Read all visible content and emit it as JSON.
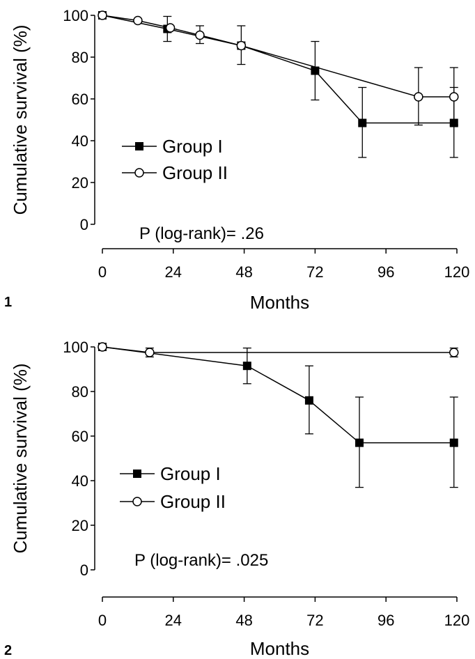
{
  "chart_data": [
    {
      "panel_label": "1",
      "type": "line",
      "xlabel": "Months",
      "ylabel": "Cumulative survival (%)",
      "xlim": [
        0,
        120
      ],
      "ylim": [
        0,
        100
      ],
      "xticks": [
        "0",
        "24",
        "48",
        "72",
        "96",
        "120"
      ],
      "yticks": [
        "0",
        "20",
        "40",
        "60",
        "80",
        "100"
      ],
      "annotation": "P (log-rank)= .26",
      "legend_position": "left-middle",
      "series": [
        {
          "name": "Group I",
          "marker": "filled-square",
          "points": [
            {
              "x": 0,
              "y": 100
            },
            {
              "x": 22,
              "y": 93.5,
              "err_low": 87.5,
              "err_high": 99.5
            },
            {
              "x": 47,
              "y": 85.5,
              "err_low": 76.5,
              "err_high": 95
            },
            {
              "x": 72,
              "y": 73.5,
              "err_low": 59.5,
              "err_high": 87.5
            },
            {
              "x": 88,
              "y": 48.5,
              "err_low": 32,
              "err_high": 65.5
            },
            {
              "x": 119,
              "y": 48.5,
              "err_low": 32,
              "err_high": 65.5
            }
          ]
        },
        {
          "name": "Group II",
          "marker": "open-circle",
          "points": [
            {
              "x": 0,
              "y": 100
            },
            {
              "x": 12,
              "y": 97.5
            },
            {
              "x": 23,
              "y": 94
            },
            {
              "x": 33,
              "y": 90.5,
              "err_low": 86.5,
              "err_high": 95
            },
            {
              "x": 47,
              "y": 85.5
            },
            {
              "x": 107,
              "y": 61,
              "err_low": 47.5,
              "err_high": 75
            },
            {
              "x": 119,
              "y": 61,
              "err_low": 47.5,
              "err_high": 75
            }
          ]
        }
      ]
    },
    {
      "panel_label": "2",
      "type": "line",
      "xlabel": "Months",
      "ylabel": "Cumulative survival (%)",
      "xlim": [
        0,
        120
      ],
      "ylim": [
        0,
        100
      ],
      "xticks": [
        "0",
        "24",
        "48",
        "72",
        "96",
        "120"
      ],
      "yticks": [
        "0",
        "20",
        "40",
        "60",
        "80",
        "100"
      ],
      "annotation": "P (log-rank)= .025",
      "legend_position": "left-middle",
      "series": [
        {
          "name": "Group I",
          "marker": "filled-square",
          "points": [
            {
              "x": 0,
              "y": 100
            },
            {
              "x": 49,
              "y": 91.5,
              "err_low": 83.5,
              "err_high": 99.5
            },
            {
              "x": 70,
              "y": 76,
              "err_low": 61,
              "err_high": 91.5
            },
            {
              "x": 87,
              "y": 57,
              "err_low": 37,
              "err_high": 77.5
            },
            {
              "x": 119,
              "y": 57,
              "err_low": 37,
              "err_high": 77.5
            }
          ]
        },
        {
          "name": "Group II",
          "marker": "open-circle",
          "points": [
            {
              "x": 0,
              "y": 100
            },
            {
              "x": 16,
              "y": 97.5,
              "err_low": 95.5,
              "err_high": 99.5
            },
            {
              "x": 119,
              "y": 97.5,
              "err_low": 95.5,
              "err_high": 99.5
            }
          ]
        }
      ]
    }
  ]
}
